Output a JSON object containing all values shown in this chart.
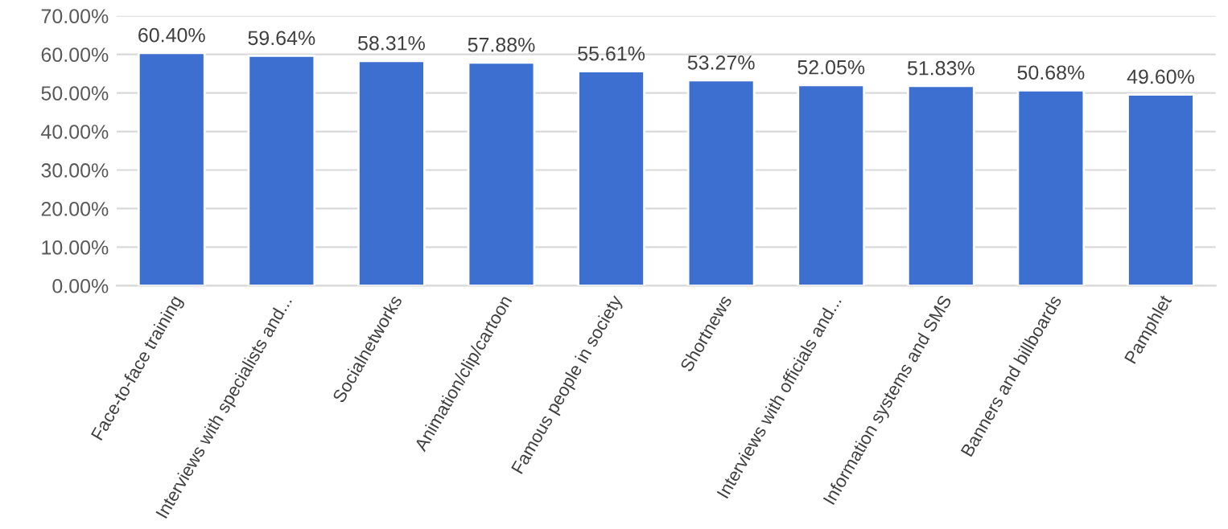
{
  "chart_data": {
    "type": "bar",
    "categories": [
      "Face-to-face training",
      "Interviews with specialists and...",
      "Socialnetworks",
      "Animation/clip/cartoon",
      "Famous people in society",
      "Shortnews",
      "Interviews with officials and...",
      "Information systems and SMS",
      "Banners and billboards",
      "Pamphlet"
    ],
    "values": [
      60.4,
      59.64,
      58.31,
      57.88,
      55.61,
      53.27,
      52.05,
      51.83,
      50.68,
      49.6
    ],
    "value_labels": [
      "60.40%",
      "59.64%",
      "58.31%",
      "57.88%",
      "55.61%",
      "53.27%",
      "52.05%",
      "51.83%",
      "50.68%",
      "49.60%"
    ],
    "color": "#3d6fd0",
    "ylim": [
      0,
      70
    ],
    "yticks": [
      {
        "value": 0,
        "label": "0.00%"
      },
      {
        "value": 10,
        "label": "10.00%"
      },
      {
        "value": 20,
        "label": "20.00%"
      },
      {
        "value": 30,
        "label": "30.00%"
      },
      {
        "value": 40,
        "label": "40.00%"
      },
      {
        "value": 50,
        "label": "50.00%"
      },
      {
        "value": 60,
        "label": "60.00%"
      },
      {
        "value": 70,
        "label": "70.00%"
      }
    ],
    "grid": "y"
  }
}
